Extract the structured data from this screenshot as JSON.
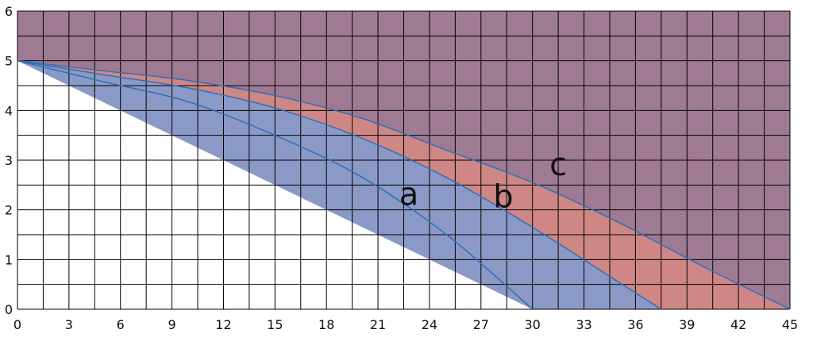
{
  "chart_data": {
    "type": "area",
    "xlim": [
      0,
      45
    ],
    "ylim": [
      0,
      6
    ],
    "x_ticks": [
      0,
      3,
      6,
      9,
      12,
      15,
      18,
      21,
      24,
      27,
      30,
      33,
      36,
      39,
      42,
      45
    ],
    "y_ticks": [
      0,
      1,
      2,
      3,
      4,
      5,
      6
    ],
    "grid": true,
    "minor_grid": {
      "x_step": 1.5,
      "y_step": 0.5
    },
    "curves": [
      {
        "label": "a",
        "x": [
          0,
          5,
          10,
          15,
          20,
          25,
          30
        ],
        "y": [
          5,
          4.58,
          4.17,
          3.5,
          2.67,
          1.5,
          0
        ]
      },
      {
        "label": "b",
        "x": [
          0,
          5,
          10,
          15,
          20,
          25,
          30,
          35,
          37.5
        ],
        "y": [
          5,
          4.72,
          4.45,
          4.05,
          3.45,
          2.65,
          1.65,
          0.55,
          0
        ]
      },
      {
        "label": "c",
        "x": [
          0,
          5,
          10,
          15,
          20,
          25,
          30,
          35,
          40,
          45
        ],
        "y": [
          5,
          4.8,
          4.6,
          4.3,
          3.85,
          3.2,
          2.55,
          1.75,
          0.85,
          0
        ]
      }
    ],
    "label_positions": [
      {
        "label": "a",
        "x": 22.8,
        "y": 2.1
      },
      {
        "label": "b",
        "x": 28.3,
        "y": 2.05
      },
      {
        "label": "c",
        "x": 31.5,
        "y": 2.7
      }
    ],
    "colors": {
      "outer_region": "#9E7B93",
      "band_c": "#CF8786",
      "band_b": "#8B99C6",
      "curve_line": "#2F6FB5",
      "grid_line": "#000000",
      "background": "#FFFFFF"
    }
  }
}
